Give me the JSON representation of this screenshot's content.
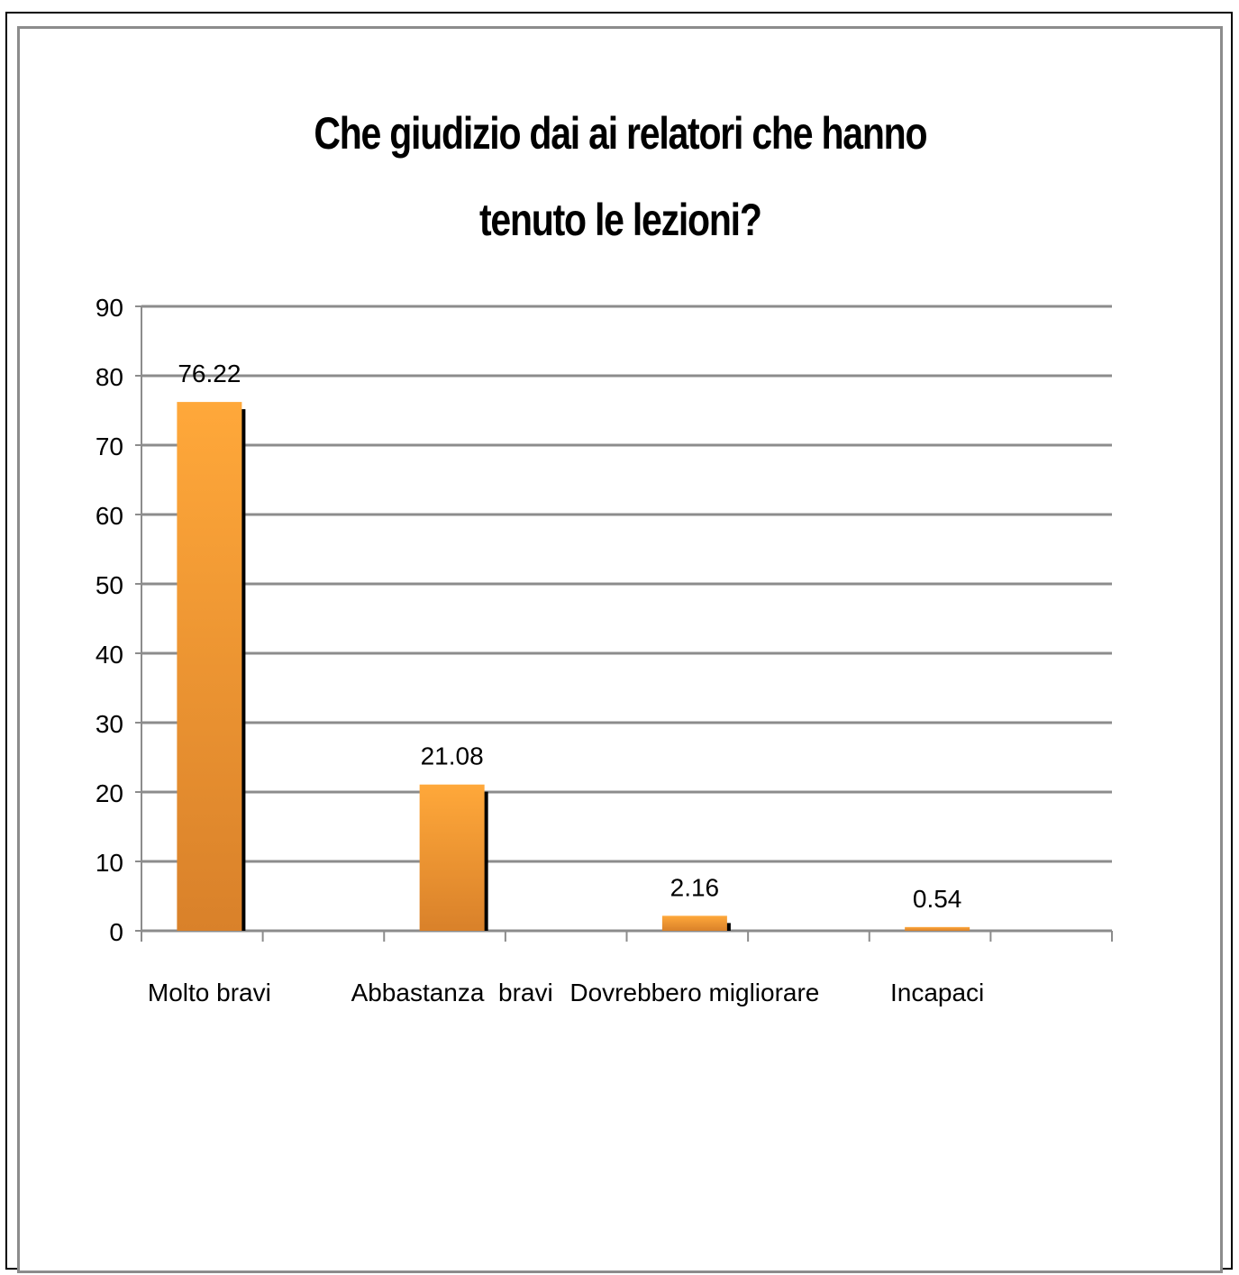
{
  "chart_data": {
    "type": "bar",
    "title_lines": [
      "Che giudizio dai ai relatori che hanno",
      "tenuto le lezioni?"
    ],
    "categories": [
      "Molto bravi",
      "Abbastanza  bravi",
      "Dovrebbero migliorare",
      "Incapaci"
    ],
    "values": [
      76.22,
      21.08,
      2.16,
      0.54
    ],
    "value_labels": [
      "76.22",
      "21.08",
      "2.16",
      "0.54"
    ],
    "ylim": [
      0,
      90
    ],
    "yticks": [
      0,
      10,
      20,
      30,
      40,
      50,
      60,
      70,
      80,
      90
    ],
    "xlabel": "",
    "ylabel": "",
    "grid": true,
    "legend": "none",
    "colors": {
      "bar_top": "#ffa83a",
      "bar_bottom": "#d9812a",
      "shadow": "#000000",
      "grid": "#8c8c8c"
    }
  }
}
